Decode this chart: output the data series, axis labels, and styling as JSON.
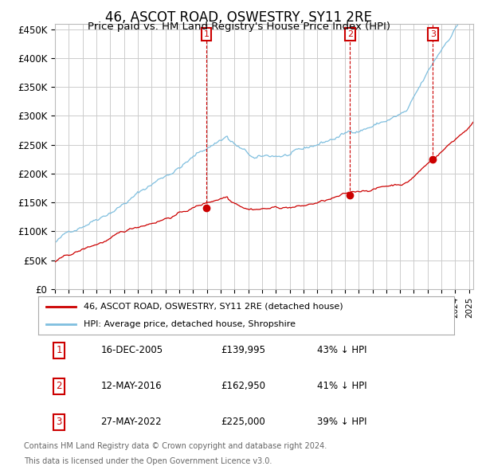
{
  "title": "46, ASCOT ROAD, OSWESTRY, SY11 2RE",
  "subtitle": "Price paid vs. HM Land Registry's House Price Index (HPI)",
  "title_fontsize": 12,
  "subtitle_fontsize": 9.5,
  "ylabel_ticks": [
    "£0",
    "£50K",
    "£100K",
    "£150K",
    "£200K",
    "£250K",
    "£300K",
    "£350K",
    "£400K",
    "£450K"
  ],
  "ytick_values": [
    0,
    50000,
    100000,
    150000,
    200000,
    250000,
    300000,
    350000,
    400000,
    450000
  ],
  "ylim": [
    0,
    460000
  ],
  "xlim_start": 1995.0,
  "xlim_end": 2025.3,
  "hpi_color": "#7fbfdf",
  "price_color": "#cc0000",
  "sale_dates": [
    2005.96,
    2016.37,
    2022.38
  ],
  "sale_prices": [
    139995,
    162950,
    225000
  ],
  "sale_labels": [
    "1",
    "2",
    "3"
  ],
  "legend_house_label": "46, ASCOT ROAD, OSWESTRY, SY11 2RE (detached house)",
  "legend_hpi_label": "HPI: Average price, detached house, Shropshire",
  "table_rows": [
    [
      "1",
      "16-DEC-2005",
      "£139,995",
      "43% ↓ HPI"
    ],
    [
      "2",
      "12-MAY-2016",
      "£162,950",
      "41% ↓ HPI"
    ],
    [
      "3",
      "27-MAY-2022",
      "£225,000",
      "39% ↓ HPI"
    ]
  ],
  "footnote1": "Contains HM Land Registry data © Crown copyright and database right 2024.",
  "footnote2": "This data is licensed under the Open Government Licence v3.0.",
  "background_color": "#ffffff",
  "plot_bg_color": "#ffffff",
  "grid_color": "#cccccc"
}
